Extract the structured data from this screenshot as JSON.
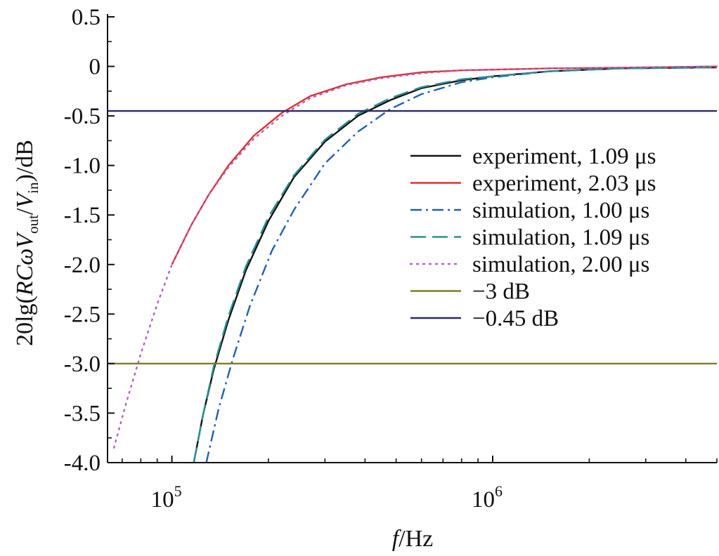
{
  "chart_data": {
    "type": "line",
    "x_scale": "log",
    "xlim": [
      63000,
      5000000
    ],
    "ylim": [
      -4.0,
      0.5
    ],
    "xlabel": {
      "italic": "f",
      "rest": "/Hz"
    },
    "ylabel": {
      "prefix": "20lg(",
      "R": "R",
      "C": "C",
      "omega": "ω",
      "V1": "V",
      "sub_out": "out",
      "slash": "/",
      "V2": "V",
      "sub_in": "in",
      "suffix": ")/dB"
    },
    "y_ticks": [
      {
        "value": 0.5,
        "label": "0.5"
      },
      {
        "value": 0,
        "label": "0"
      },
      {
        "value": -0.5,
        "label": "-0.5"
      },
      {
        "value": -1.0,
        "label": "-1.0"
      },
      {
        "value": -1.5,
        "label": "-1.5"
      },
      {
        "value": -2.0,
        "label": "-2.0"
      },
      {
        "value": -2.5,
        "label": "-2.5"
      },
      {
        "value": -3.0,
        "label": "-3.0"
      },
      {
        "value": -3.5,
        "label": "-3.5"
      },
      {
        "value": -4.0,
        "label": "-4.0"
      }
    ],
    "x_ticks": [
      {
        "value": 100000,
        "base": "10",
        "exp": "5"
      },
      {
        "value": 1000000,
        "base": "10",
        "exp": "6"
      }
    ],
    "legend_position": "right-center",
    "grid": false,
    "series": [
      {
        "name": "experiment, 1.09 μs",
        "color": "#111111",
        "style": "solid",
        "points": [
          [
            117000,
            -4.0
          ],
          [
            125000,
            -3.52
          ],
          [
            135000,
            -3.06
          ],
          [
            150000,
            -2.56
          ],
          [
            170000,
            -2.06
          ],
          [
            200000,
            -1.56
          ],
          [
            240000,
            -1.12
          ],
          [
            300000,
            -0.76
          ],
          [
            380000,
            -0.5
          ],
          [
            480000,
            -0.34
          ],
          [
            600000,
            -0.22
          ],
          [
            800000,
            -0.14
          ],
          [
            1000000,
            -0.1
          ],
          [
            1500000,
            -0.05
          ],
          [
            2500000,
            -0.02
          ],
          [
            5000000,
            -0.01
          ]
        ]
      },
      {
        "name": "experiment, 2.03 μs",
        "color": "#e03030",
        "style": "solid",
        "points": [
          [
            100000,
            -2.0
          ],
          [
            115000,
            -1.6
          ],
          [
            130000,
            -1.3
          ],
          [
            150000,
            -1.0
          ],
          [
            180000,
            -0.7
          ],
          [
            220000,
            -0.47
          ],
          [
            270000,
            -0.3
          ],
          [
            350000,
            -0.18
          ],
          [
            450000,
            -0.11
          ],
          [
            600000,
            -0.06
          ],
          [
            800000,
            -0.04
          ],
          [
            1500000,
            -0.02
          ],
          [
            3000000,
            -0.01
          ],
          [
            5000000,
            0.0
          ]
        ]
      },
      {
        "name": "simulation, 1.00 μs",
        "color": "#2060b0",
        "style": "dashdot",
        "points": [
          [
            128000,
            -4.0
          ],
          [
            140000,
            -3.45
          ],
          [
            155000,
            -2.95
          ],
          [
            175000,
            -2.42
          ],
          [
            205000,
            -1.86
          ],
          [
            240000,
            -1.45
          ],
          [
            300000,
            -0.98
          ],
          [
            380000,
            -0.66
          ],
          [
            480000,
            -0.43
          ],
          [
            600000,
            -0.28
          ],
          [
            800000,
            -0.16
          ],
          [
            1000000,
            -0.11
          ],
          [
            1500000,
            -0.05
          ],
          [
            2500000,
            -0.02
          ],
          [
            5000000,
            -0.01
          ]
        ]
      },
      {
        "name": "simulation, 1.09 μs",
        "color": "#2a9090",
        "style": "dashed",
        "points": [
          [
            117000,
            -4.0
          ],
          [
            125000,
            -3.52
          ],
          [
            135000,
            -3.03
          ],
          [
            150000,
            -2.52
          ],
          [
            170000,
            -2.02
          ],
          [
            200000,
            -1.52
          ],
          [
            240000,
            -1.1
          ],
          [
            300000,
            -0.74
          ],
          [
            380000,
            -0.48
          ],
          [
            480000,
            -0.32
          ],
          [
            600000,
            -0.21
          ],
          [
            800000,
            -0.13
          ],
          [
            1000000,
            -0.1
          ],
          [
            1500000,
            -0.05
          ],
          [
            2500000,
            -0.02
          ],
          [
            5000000,
            -0.01
          ]
        ]
      },
      {
        "name": "simulation, 2.00 μs",
        "color": "#b060c0",
        "style": "dotted",
        "points": [
          [
            66000,
            -3.85
          ],
          [
            72000,
            -3.4
          ],
          [
            80000,
            -2.9
          ],
          [
            90000,
            -2.4
          ],
          [
            100000,
            -2.0
          ],
          [
            115000,
            -1.6
          ],
          [
            130000,
            -1.3
          ],
          [
            150000,
            -1.02
          ],
          [
            180000,
            -0.73
          ],
          [
            220000,
            -0.5
          ],
          [
            270000,
            -0.32
          ],
          [
            350000,
            -0.19
          ],
          [
            450000,
            -0.12
          ],
          [
            600000,
            -0.07
          ],
          [
            800000,
            -0.04
          ],
          [
            1500000,
            -0.02
          ],
          [
            3000000,
            -0.01
          ],
          [
            5000000,
            0.0
          ]
        ]
      },
      {
        "name": "−3 dB",
        "color": "#7d7d2a",
        "style": "solid",
        "points": [
          [
            63000,
            -3.0
          ],
          [
            5000000,
            -3.0
          ]
        ]
      },
      {
        "name": "−0.45 dB",
        "color": "#2b2b60",
        "style": "solid",
        "points": [
          [
            63000,
            -0.45
          ],
          [
            5000000,
            -0.45
          ]
        ]
      }
    ]
  }
}
